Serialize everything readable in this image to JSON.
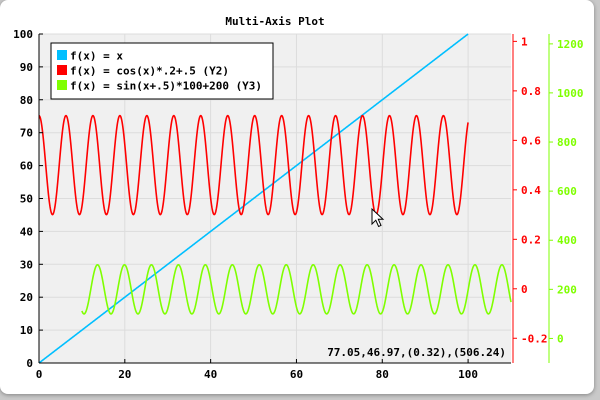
{
  "chart_data": {
    "type": "line",
    "title": "Multi-Axis Plot",
    "xlabel": "",
    "ylabel": "",
    "grid": true,
    "legend_placement": "top-left",
    "x_axis": {
      "range": [
        0,
        110
      ],
      "ticks": [
        0,
        20,
        40,
        60,
        80,
        100
      ],
      "color": "#000000"
    },
    "y_axes": [
      {
        "id": "y1",
        "side": "left",
        "range": [
          0,
          100
        ],
        "ticks": [
          0,
          10,
          20,
          30,
          40,
          50,
          60,
          70,
          80,
          90,
          100
        ],
        "color": "#000000"
      },
      {
        "id": "y2",
        "side": "right",
        "range": [
          -0.3,
          1.03
        ],
        "ticks": [
          -0.2,
          0,
          0.2,
          0.4,
          0.6,
          0.8,
          1
        ],
        "tick_labels": [
          "-0.2",
          "0",
          "0.2",
          "0.4",
          "0.6",
          "0.8",
          "1"
        ],
        "color": "#ff0000"
      },
      {
        "id": "y3",
        "side": "right",
        "range": [
          -100,
          1240
        ],
        "ticks": [
          0,
          200,
          400,
          600,
          800,
          1000,
          1200
        ],
        "color": "#7fff00"
      }
    ],
    "series": [
      {
        "name": "f(x) = x",
        "axis": "y1",
        "color": "#00bfff",
        "x_range": [
          0,
          100
        ],
        "function": "x"
      },
      {
        "name": "f(x) = cos(x)*.2+.5 (Y2)",
        "axis": "y2",
        "color": "#ff0000",
        "x_range": [
          0,
          100
        ],
        "function": "cos(x)*.2+.5"
      },
      {
        "name": "f(x) = sin(x+.5)*100+200 (Y3)",
        "axis": "y3",
        "color": "#7fff00",
        "x_range": [
          10,
          110
        ],
        "function": "sin(x+.5)*100+200"
      }
    ],
    "annotations": [
      {
        "text": "77.05,46.97,(0.32),(506.24)",
        "type": "cursor-readout"
      }
    ]
  },
  "colors": {
    "plot_background": "#f0f0f0",
    "grid": "#dcdcdc",
    "frame": "#000000"
  }
}
